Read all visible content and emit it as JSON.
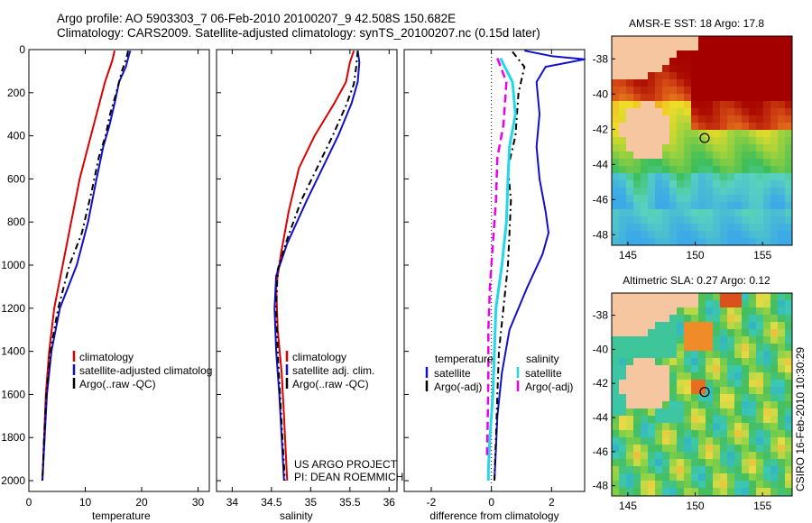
{
  "title": {
    "line1": "Argo profile: AO 5903303_7 06-Feb-2010 20100207_9 42.508S 150.682E",
    "line2": "Climatology: CARS2009. Satellite-adjusted climatology: synTS_20100207.nc (0.15d later)"
  },
  "footer": {
    "line1": "US ARGO PROJECT",
    "line2": "PI: DEAN ROEMMICH"
  },
  "side_label": "CSIRO 16-Feb-2010 10:30:29",
  "colors": {
    "clim": "#dd0000",
    "sat": "#1010cc",
    "argo": "#000000",
    "cyan": "#22d8e8",
    "magenta": "#ee00ee"
  },
  "chart_data": [
    {
      "type": "line",
      "xlabel": "temperature",
      "ylabel": "",
      "xlim": [
        0,
        32
      ],
      "ylim": [
        2050,
        0
      ],
      "xticks": [
        0,
        10,
        20,
        30
      ],
      "yticks": [
        0,
        200,
        400,
        600,
        800,
        1000,
        1200,
        1400,
        1600,
        1800,
        2000
      ],
      "legend": {
        "placement": "bottom-right",
        "entries": [
          "climatology",
          "satellite-adjusted climatolog",
          "Argo(..raw -QC)"
        ]
      },
      "series": [
        {
          "name": "climatology",
          "style": "clim",
          "points": [
            [
              15.2,
              5
            ],
            [
              14.8,
              50
            ],
            [
              13.5,
              150
            ],
            [
              12.0,
              300
            ],
            [
              10.5,
              450
            ],
            [
              9.0,
              600
            ],
            [
              7.5,
              800
            ],
            [
              6.0,
              1000
            ],
            [
              4.5,
              1200
            ],
            [
              3.6,
              1400
            ],
            [
              3.0,
              1600
            ],
            [
              2.7,
              1800
            ],
            [
              2.4,
              2000
            ]
          ]
        },
        {
          "name": "satellite-adjusted climatology",
          "style": "sat",
          "points": [
            [
              18.0,
              5
            ],
            [
              17.7,
              30
            ],
            [
              17.2,
              80
            ],
            [
              16.0,
              150
            ],
            [
              15.2,
              250
            ],
            [
              14.3,
              350
            ],
            [
              13.2,
              450
            ],
            [
              12.0,
              600
            ],
            [
              10.5,
              800
            ],
            [
              8.5,
              1000
            ],
            [
              5.5,
              1200
            ],
            [
              4.0,
              1400
            ],
            [
              3.2,
              1600
            ],
            [
              2.8,
              1800
            ],
            [
              2.4,
              2000
            ]
          ]
        },
        {
          "name": "Argo(..raw -QC)",
          "style": "argo",
          "points": [
            [
              17.6,
              5
            ],
            [
              17.3,
              40
            ],
            [
              16.5,
              100
            ],
            [
              15.5,
              200
            ],
            [
              14.4,
              300
            ],
            [
              13.6,
              400
            ],
            [
              12.4,
              500
            ],
            [
              11.2,
              650
            ],
            [
              9.4,
              850
            ],
            [
              7.2,
              1000
            ],
            [
              5.2,
              1200
            ],
            [
              3.8,
              1400
            ],
            [
              3.1,
              1600
            ],
            [
              2.7,
              1800
            ],
            [
              2.4,
              2000
            ]
          ]
        }
      ]
    },
    {
      "type": "line",
      "xlabel": "salinity",
      "xlim": [
        33.8,
        36.1
      ],
      "ylim": [
        2050,
        0
      ],
      "xticks": [
        34,
        34.5,
        35,
        35.5,
        36
      ],
      "legend": {
        "placement": "bottom-right",
        "entries": [
          "climatology",
          "satellite adj. clim.",
          "Argo(..raw -QC)"
        ]
      },
      "series": [
        {
          "name": "climatology",
          "style": "clim",
          "points": [
            [
              35.55,
              5
            ],
            [
              35.5,
              60
            ],
            [
              35.45,
              150
            ],
            [
              35.3,
              250
            ],
            [
              35.05,
              400
            ],
            [
              34.85,
              550
            ],
            [
              34.72,
              750
            ],
            [
              34.62,
              950
            ],
            [
              34.56,
              1100
            ],
            [
              34.58,
              1300
            ],
            [
              34.63,
              1500
            ],
            [
              34.66,
              1700
            ],
            [
              34.68,
              1850
            ],
            [
              34.7,
              2000
            ]
          ]
        },
        {
          "name": "satellite adj. clim.",
          "style": "sat",
          "points": [
            [
              35.6,
              5
            ],
            [
              35.62,
              60
            ],
            [
              35.6,
              150
            ],
            [
              35.52,
              250
            ],
            [
              35.35,
              400
            ],
            [
              35.15,
              550
            ],
            [
              34.95,
              700
            ],
            [
              34.7,
              900
            ],
            [
              34.56,
              1050
            ],
            [
              34.54,
              1200
            ],
            [
              34.56,
              1400
            ],
            [
              34.6,
              1600
            ],
            [
              34.63,
              1800
            ],
            [
              34.66,
              2000
            ]
          ]
        },
        {
          "name": "Argo(..raw -QC)",
          "style": "argo",
          "points": [
            [
              35.6,
              5
            ],
            [
              35.58,
              80
            ],
            [
              35.55,
              160
            ],
            [
              35.45,
              260
            ],
            [
              35.28,
              400
            ],
            [
              35.08,
              550
            ],
            [
              34.88,
              700
            ],
            [
              34.7,
              880
            ],
            [
              34.58,
              1020
            ],
            [
              34.56,
              1200
            ],
            [
              34.58,
              1400
            ],
            [
              34.61,
              1600
            ],
            [
              34.64,
              1800
            ],
            [
              34.67,
              2000
            ]
          ]
        }
      ]
    },
    {
      "type": "line",
      "xlabel": "difference from climatology",
      "xlim": [
        -2.9,
        3.1
      ],
      "ylim": [
        2050,
        0
      ],
      "xticks": [
        -2,
        0,
        2
      ],
      "legend": {
        "placement": "bottom",
        "temperature_title": "temperature",
        "salinity_title": "salinity",
        "temperature_entries": [
          "satellite",
          "Argo(-adj)"
        ],
        "salinity_entries": [
          "satellite",
          "Argo(-adj)"
        ]
      },
      "series": [
        {
          "name": "temperature satellite",
          "style": "sat",
          "points": [
            [
              1.1,
              5
            ],
            [
              2.0,
              30
            ],
            [
              3.1,
              45
            ],
            [
              1.8,
              80
            ],
            [
              1.5,
              150
            ],
            [
              1.6,
              300
            ],
            [
              1.5,
              450
            ],
            [
              1.6,
              600
            ],
            [
              1.8,
              750
            ],
            [
              1.9,
              850
            ],
            [
              1.7,
              950
            ],
            [
              1.2,
              1100
            ],
            [
              0.6,
              1300
            ],
            [
              0.35,
              1500
            ],
            [
              0.2,
              1700
            ],
            [
              0.15,
              1850
            ],
            [
              0.1,
              2000
            ]
          ]
        },
        {
          "name": "temperature Argo(-adj)",
          "style": "argo",
          "points": [
            [
              0.7,
              10
            ],
            [
              1.1,
              80
            ],
            [
              0.9,
              200
            ],
            [
              0.8,
              400
            ],
            [
              0.55,
              550
            ],
            [
              0.65,
              700
            ],
            [
              0.6,
              850
            ],
            [
              0.55,
              1000
            ],
            [
              0.4,
              1200
            ],
            [
              0.25,
              1400
            ],
            [
              0.2,
              1600
            ],
            [
              0.15,
              1800
            ],
            [
              0.1,
              2000
            ]
          ]
        },
        {
          "name": "salinity satellite",
          "style": "cyan",
          "points": [
            [
              0.3,
              40
            ],
            [
              0.7,
              150
            ],
            [
              0.8,
              300
            ],
            [
              0.6,
              450
            ],
            [
              0.55,
              600
            ],
            [
              0.5,
              800
            ],
            [
              0.35,
              1000
            ],
            [
              0.15,
              1200
            ],
            [
              0.1,
              1400
            ],
            [
              0.05,
              1600
            ],
            [
              -0.05,
              1800
            ],
            [
              -0.1,
              1950
            ],
            [
              -0.1,
              2000
            ]
          ]
        },
        {
          "name": "salinity Argo(-adj)",
          "style": "magenta",
          "points": [
            [
              0.2,
              40
            ],
            [
              0.5,
              150
            ],
            [
              0.4,
              350
            ],
            [
              0.2,
              500
            ],
            [
              0.15,
              700
            ],
            [
              0.05,
              900
            ],
            [
              -0.05,
              1100
            ],
            [
              -0.1,
              1300
            ],
            [
              -0.1,
              1500
            ],
            [
              -0.12,
              1700
            ],
            [
              -0.15,
              1900
            ]
          ]
        }
      ]
    }
  ],
  "maps": [
    {
      "title": "AMSR-E SST: 18 Argo: 17.8",
      "xticks": [
        145,
        150,
        155
      ],
      "yticks": [
        -38,
        -40,
        -42,
        -44,
        -46,
        -48
      ],
      "xlim": [
        143.8,
        157.2
      ],
      "ylim": [
        -48.6,
        -36.7
      ],
      "marker": [
        150.7,
        -42.5
      ]
    },
    {
      "title": "Altimetric SLA: 0.27 Argo: 0.12",
      "xticks": [
        145,
        150,
        155
      ],
      "yticks": [
        -38,
        -40,
        -42,
        -44,
        -46,
        -48
      ],
      "xlim": [
        143.8,
        157.2
      ],
      "ylim": [
        -48.6,
        -36.7
      ],
      "marker": [
        150.7,
        -42.5
      ]
    }
  ]
}
